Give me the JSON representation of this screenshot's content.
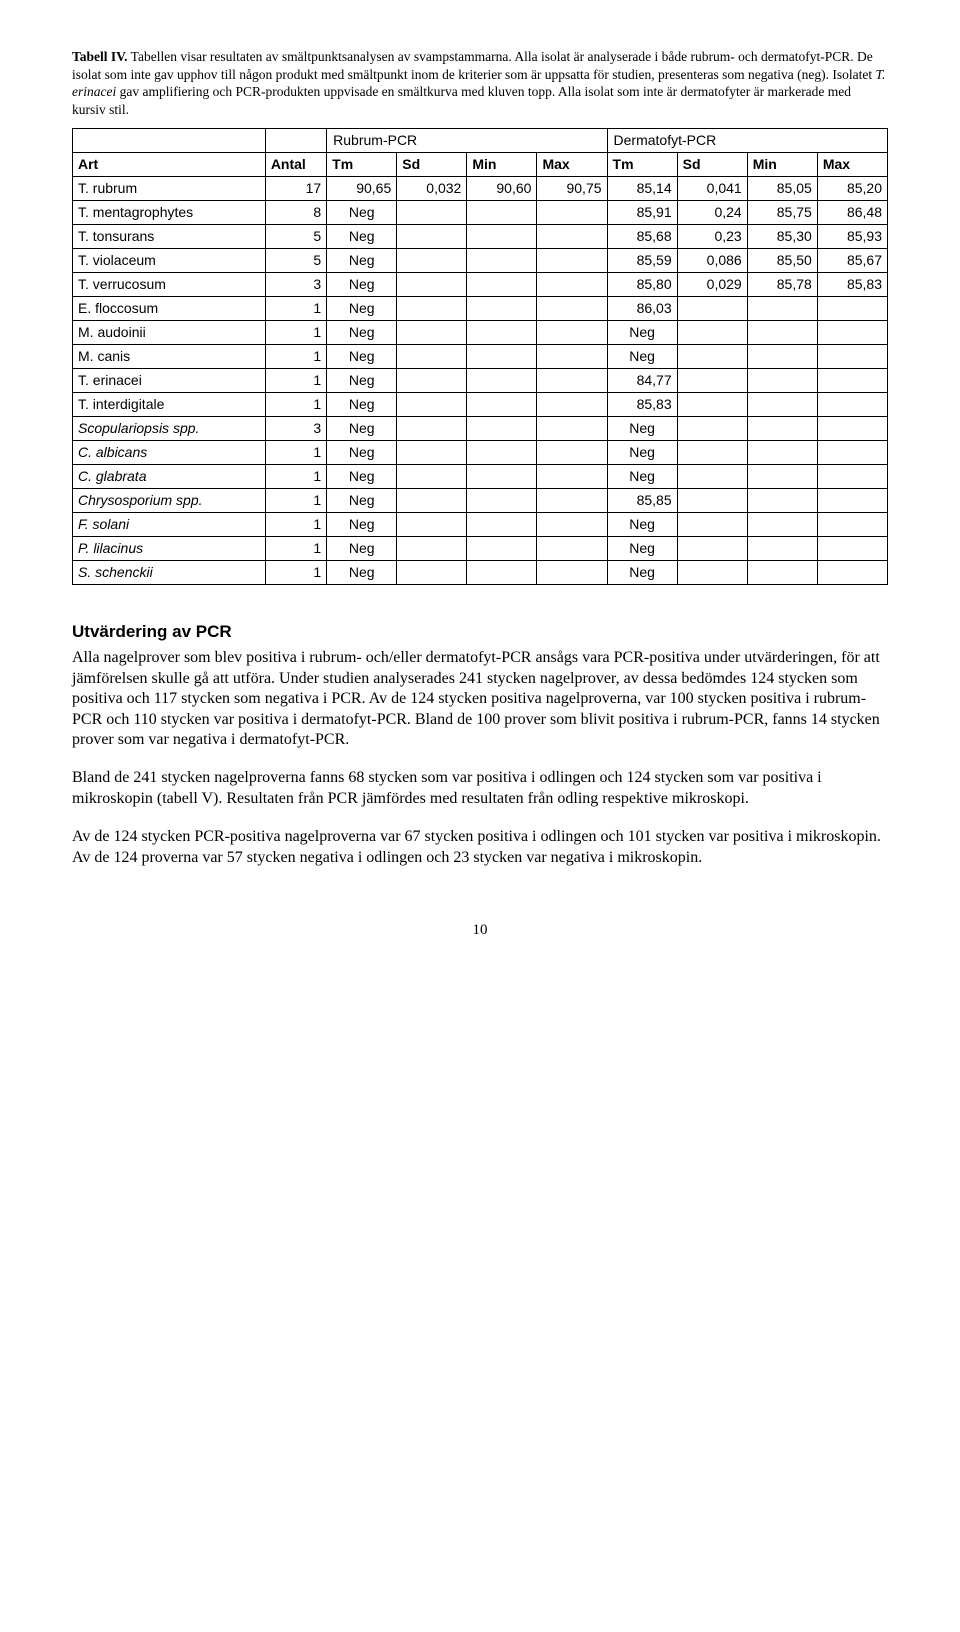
{
  "caption": {
    "label": "Tabell IV.",
    "text_parts": [
      " Tabellen visar resultaten av smältpunktsanalysen av svampstammarna. Alla isolat är analyserade i både rubrum- och dermatofyt-PCR. De isolat som inte gav upphov till någon produkt med smältpunkt inom de kriterier som är uppsatta för studien, presenteras som negativa (neg). Isolatet ",
      "T. erinacei",
      " gav amplifiering och PCR-produkten uppvisade en smältkurva med kluven topp. Alla isolat som inte är dermatofyter är markerade med kursiv stil."
    ]
  },
  "table": {
    "super_left": "Rubrum-PCR",
    "super_right": "Dermatofyt-PCR",
    "columns": [
      "Art",
      "Antal",
      "Tm",
      "Sd",
      "Min",
      "Max",
      "Tm",
      "Sd",
      "Min",
      "Max"
    ],
    "rows": [
      {
        "art": "T. rubrum",
        "ital": false,
        "antal": "17",
        "r": [
          "90,65",
          "0,032",
          "90,60",
          "90,75"
        ],
        "d": [
          "85,14",
          "0,041",
          "85,05",
          "85,20"
        ]
      },
      {
        "art": "T. mentagrophytes",
        "ital": false,
        "antal": "8",
        "r": [
          "Neg",
          "",
          "",
          ""
        ],
        "d": [
          "85,91",
          "0,24",
          "85,75",
          "86,48"
        ]
      },
      {
        "art": "T. tonsurans",
        "ital": false,
        "antal": "5",
        "r": [
          "Neg",
          "",
          "",
          ""
        ],
        "d": [
          "85,68",
          "0,23",
          "85,30",
          "85,93"
        ]
      },
      {
        "art": "T. violaceum",
        "ital": false,
        "antal": "5",
        "r": [
          "Neg",
          "",
          "",
          ""
        ],
        "d": [
          "85,59",
          "0,086",
          "85,50",
          "85,67"
        ]
      },
      {
        "art": "T. verrucosum",
        "ital": false,
        "antal": "3",
        "r": [
          "Neg",
          "",
          "",
          ""
        ],
        "d": [
          "85,80",
          "0,029",
          "85,78",
          "85,83"
        ]
      },
      {
        "art": "E. floccosum",
        "ital": false,
        "antal": "1",
        "r": [
          "Neg",
          "",
          "",
          ""
        ],
        "d": [
          "86,03",
          "",
          "",
          ""
        ]
      },
      {
        "art": "M. audoinii",
        "ital": false,
        "antal": "1",
        "r": [
          "Neg",
          "",
          "",
          ""
        ],
        "d": [
          "Neg",
          "",
          "",
          ""
        ]
      },
      {
        "art": "M. canis",
        "ital": false,
        "antal": "1",
        "r": [
          "Neg",
          "",
          "",
          ""
        ],
        "d": [
          "Neg",
          "",
          "",
          ""
        ]
      },
      {
        "art": "T. erinacei",
        "ital": false,
        "antal": "1",
        "r": [
          "Neg",
          "",
          "",
          ""
        ],
        "d": [
          "84,77",
          "",
          "",
          ""
        ]
      },
      {
        "art": "T. interdigitale",
        "ital": false,
        "antal": "1",
        "r": [
          "Neg",
          "",
          "",
          ""
        ],
        "d": [
          "85,83",
          "",
          "",
          ""
        ]
      },
      {
        "art": "Scopulariopsis spp.",
        "ital": true,
        "antal": "3",
        "r": [
          "Neg",
          "",
          "",
          ""
        ],
        "d": [
          "Neg",
          "",
          "",
          ""
        ]
      },
      {
        "art": "C. albicans",
        "ital": true,
        "antal": "1",
        "r": [
          "Neg",
          "",
          "",
          ""
        ],
        "d": [
          "Neg",
          "",
          "",
          ""
        ]
      },
      {
        "art": "C. glabrata",
        "ital": true,
        "antal": "1",
        "r": [
          "Neg",
          "",
          "",
          ""
        ],
        "d": [
          "Neg",
          "",
          "",
          ""
        ]
      },
      {
        "art": "Chrysosporium spp.",
        "ital": true,
        "antal": "1",
        "r": [
          "Neg",
          "",
          "",
          ""
        ],
        "d": [
          "85,85",
          "",
          "",
          ""
        ]
      },
      {
        "art": "F. solani",
        "ital": true,
        "antal": "1",
        "r": [
          "Neg",
          "",
          "",
          ""
        ],
        "d": [
          "Neg",
          "",
          "",
          ""
        ]
      },
      {
        "art": "P. lilacinus",
        "ital": true,
        "antal": "1",
        "r": [
          "Neg",
          "",
          "",
          ""
        ],
        "d": [
          "Neg",
          "",
          "",
          ""
        ]
      },
      {
        "art": "S. schenckii",
        "ital": true,
        "antal": "1",
        "r": [
          "Neg",
          "",
          "",
          ""
        ],
        "d": [
          "Neg",
          "",
          "",
          ""
        ]
      }
    ]
  },
  "section_heading": "Utvärdering av PCR",
  "paragraphs": [
    "Alla nagelprover som blev positiva i rubrum- och/eller dermatofyt-PCR ansågs vara PCR-positiva under utvärderingen, för att jämförelsen skulle gå att utföra. Under studien analyserades 241 stycken nagelprover, av dessa bedömdes 124 stycken som positiva och 117 stycken som negativa i PCR. Av de 124 stycken positiva nagelproverna, var 100 stycken positiva i rubrum-PCR och 110 stycken var positiva i dermatofyt-PCR. Bland de 100 prover som blivit positiva i rubrum-PCR, fanns 14 stycken prover som var negativa i dermatofyt-PCR.",
    "Bland de 241 stycken nagelproverna fanns 68 stycken som var positiva i odlingen och 124 stycken som var positiva i mikroskopin (tabell V). Resultaten från PCR jämfördes med resultaten från odling respektive mikroskopi.",
    "Av de 124 stycken PCR-positiva nagelproverna var 67 stycken positiva i odlingen och 101 stycken var positiva i mikroskopin. Av de 124 proverna var 57 stycken negativa i odlingen och 23 stycken var negativa i mikroskopin."
  ],
  "page_number": "10"
}
